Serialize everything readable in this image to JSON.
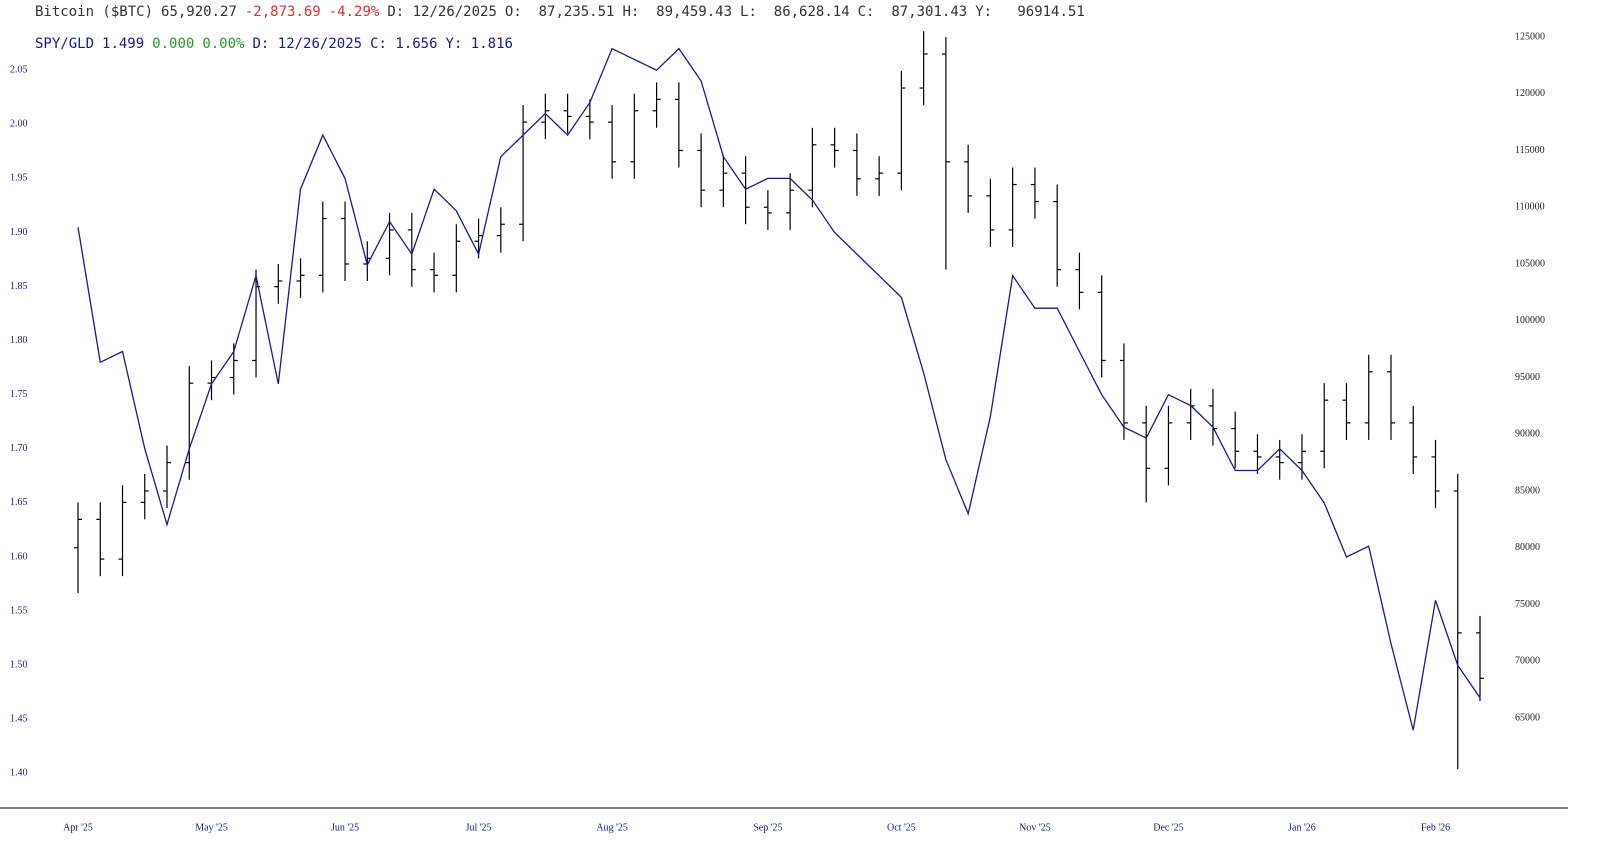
{
  "chart_data": {
    "type": "ohlc",
    "categories": [
      "Apr '25",
      null,
      null,
      null,
      null,
      null,
      "May '25",
      null,
      null,
      null,
      null,
      null,
      "Jun '25",
      null,
      null,
      null,
      null,
      null,
      "Jul '25",
      null,
      null,
      null,
      null,
      null,
      "Aug '25",
      null,
      null,
      null,
      null,
      null,
      null,
      "Sep '25",
      null,
      null,
      null,
      null,
      null,
      "Oct '25",
      null,
      null,
      null,
      null,
      null,
      "Nov '25",
      null,
      null,
      null,
      null,
      null,
      "Dec '25",
      null,
      null,
      null,
      null,
      null,
      "Jan '26",
      null,
      null,
      null,
      null,
      null,
      "Feb '26",
      null,
      null
    ],
    "ylim": [
      1.368,
      2.089
    ],
    "yticks": [
      {
        "value": 1.4,
        "label": "1.40"
      },
      {
        "value": 1.45,
        "label": "1.45"
      },
      {
        "value": 1.5,
        "label": "1.50"
      },
      {
        "value": 1.55,
        "label": "1.55"
      },
      {
        "value": 1.6,
        "label": "1.60"
      },
      {
        "value": 1.65,
        "label": "1.65"
      },
      {
        "value": 1.7,
        "label": "1.70"
      },
      {
        "value": 1.75,
        "label": "1.75"
      },
      {
        "value": 1.8,
        "label": "1.80"
      },
      {
        "value": 1.85,
        "label": "1.85"
      },
      {
        "value": 1.9,
        "label": "1.90"
      },
      {
        "value": 1.95,
        "label": "1.95"
      },
      {
        "value": 2.0,
        "label": "2.00"
      },
      {
        "value": 2.05,
        "label": "2.05"
      }
    ],
    "y2lim": [
      57070,
      125790
    ],
    "y2ticks": [
      65000,
      70000,
      75000,
      80000,
      85000,
      90000,
      95000,
      100000,
      105000,
      110000,
      115000,
      120000,
      125000
    ],
    "grid": false,
    "series": [
      {
        "name": "Bitcoin ($BTC)",
        "type": "ohlc",
        "axis": "y2",
        "color": "#000000",
        "quote": [
          {
            "text": "65,920.27",
            "color": "#333333"
          },
          {
            "text": "-2,873.69",
            "color": "#e03030"
          },
          {
            "text": "-4.29%",
            "color": "#e03030"
          },
          {
            "text": "D: 12/26/2025",
            "color": "#333333"
          },
          {
            "text": "O:  87,235.51",
            "color": "#333333"
          },
          {
            "text": "H:  89,459.43",
            "color": "#333333"
          },
          {
            "text": "L:  86,628.14",
            "color": "#333333"
          },
          {
            "text": "C:  87,301.43",
            "color": "#333333"
          },
          {
            "text": "Y:   96914.51",
            "color": "#333333"
          }
        ],
        "open": [
          80000,
          82500,
          79000,
          84000,
          85000,
          87500,
          94500,
          95000,
          96500,
          103000,
          103500,
          104000,
          109000,
          105000,
          105500,
          108000,
          104500,
          104000,
          107000,
          107500,
          108500,
          117500,
          118500,
          118000,
          117500,
          114000,
          118500,
          119500,
          115000,
          111500,
          113000,
          110000,
          109500,
          111500,
          115500,
          115000,
          112500,
          113000,
          120500,
          123500,
          114000,
          111000,
          108000,
          112000,
          110500,
          104500,
          102500,
          96500,
          91000,
          87000,
          91000,
          92500,
          90500,
          88500,
          88000,
          87500,
          88500,
          93000,
          91000,
          95500,
          91000,
          88000,
          85000,
          72500
        ],
        "high": [
          84000,
          84000,
          85500,
          86500,
          89000,
          96000,
          96500,
          98000,
          104500,
          105000,
          105500,
          110500,
          110500,
          107000,
          109500,
          109500,
          106000,
          108500,
          109000,
          110000,
          119000,
          120000,
          120000,
          119500,
          119000,
          120000,
          121000,
          121000,
          116500,
          114500,
          114500,
          111500,
          113000,
          117000,
          117000,
          116500,
          114500,
          122000,
          125500,
          125000,
          115500,
          112500,
          113500,
          113500,
          112000,
          106000,
          104000,
          98000,
          92500,
          92500,
          94000,
          94000,
          92000,
          90000,
          89500,
          90000,
          94500,
          94500,
          97000,
          97000,
          92500,
          89500,
          86500,
          74000
        ],
        "low": [
          76000,
          77500,
          77500,
          82500,
          83500,
          86000,
          93000,
          93500,
          95000,
          101500,
          102000,
          102500,
          103500,
          103500,
          104000,
          103000,
          102500,
          102500,
          105500,
          106000,
          107000,
          116000,
          116500,
          116000,
          112500,
          112500,
          117000,
          113500,
          110000,
          110000,
          108500,
          108000,
          108000,
          110000,
          113500,
          111000,
          111000,
          111500,
          119000,
          104500,
          109500,
          106500,
          106500,
          109000,
          103000,
          101000,
          95000,
          89500,
          84000,
          85500,
          89500,
          89000,
          87000,
          86500,
          86000,
          86000,
          87000,
          89500,
          89500,
          89500,
          86500,
          83500,
          60500,
          66500
        ],
        "close": [
          82500,
          79000,
          84000,
          85000,
          87500,
          94500,
          95000,
          96500,
          103000,
          103500,
          104000,
          109000,
          105000,
          105500,
          108000,
          104500,
          104000,
          107000,
          107500,
          108500,
          117500,
          118500,
          118000,
          117500,
          114000,
          118500,
          119500,
          115000,
          111500,
          113000,
          110000,
          109500,
          111500,
          115500,
          115000,
          112500,
          113000,
          120500,
          123500,
          114000,
          111000,
          108000,
          112000,
          110500,
          104500,
          102500,
          96500,
          91000,
          87000,
          91000,
          92500,
          90500,
          88500,
          88000,
          87500,
          88500,
          93000,
          91000,
          95500,
          91000,
          88000,
          85000,
          72500,
          68500
        ]
      },
      {
        "name": "SPY/GLD",
        "type": "line",
        "axis": "y",
        "color": "#1a1a8c",
        "quote": [
          {
            "text": "1.499",
            "color": "#1a1a8c"
          },
          {
            "text": "0.000",
            "color": "#2a9a2a"
          },
          {
            "text": "0.00%",
            "color": "#2a9a2a"
          },
          {
            "text": "D: 12/26/2025",
            "color": "#1a1a8c"
          },
          {
            "text": "C: 1.656",
            "color": "#1a1a8c"
          },
          {
            "text": "Y: 1.816",
            "color": "#1a1a8c"
          }
        ],
        "values": [
          1.905,
          1.78,
          1.79,
          1.7,
          1.63,
          1.7,
          1.76,
          1.79,
          1.86,
          1.76,
          1.94,
          1.99,
          1.95,
          1.87,
          1.91,
          1.88,
          1.94,
          1.92,
          1.88,
          1.97,
          1.99,
          2.01,
          1.99,
          2.02,
          2.07,
          2.06,
          2.05,
          2.07,
          2.04,
          1.97,
          1.94,
          1.95,
          1.95,
          1.93,
          1.9,
          1.88,
          1.86,
          1.84,
          1.77,
          1.69,
          1.64,
          1.73,
          1.86,
          1.83,
          1.83,
          1.79,
          1.75,
          1.72,
          1.71,
          1.75,
          1.74,
          1.72,
          1.68,
          1.68,
          1.7,
          1.68,
          1.65,
          1.6,
          1.61,
          1.52,
          1.44,
          1.56,
          1.5,
          1.47
        ]
      }
    ]
  }
}
